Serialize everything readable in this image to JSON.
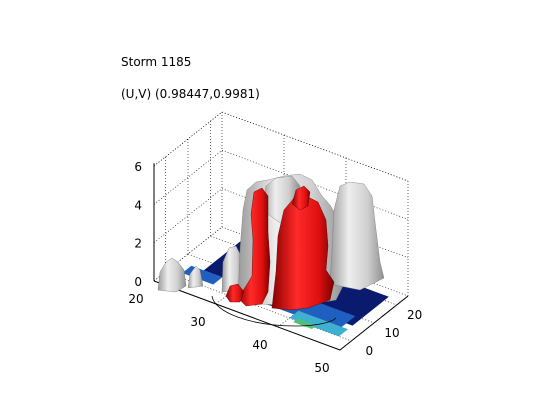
{
  "chart_data": {
    "type": "3d-isosurface",
    "title": "Storm 1185",
    "subtitle": "(U,V) (0.98447,0.9981)",
    "x_axis": {
      "ticks": [
        "20",
        "30",
        "40",
        "50"
      ],
      "range": [
        20,
        50
      ]
    },
    "y_axis": {
      "ticks": [
        "0",
        "10",
        "20"
      ],
      "range": [
        0,
        20
      ]
    },
    "z_axis": {
      "ticks": [
        "0",
        "2",
        "4",
        "6"
      ],
      "range": [
        0,
        6
      ]
    },
    "grid": true,
    "surfaces": [
      {
        "name_hint": "outer isosurface",
        "color": "#d8d8d8"
      },
      {
        "name_hint": "inner isosurface",
        "color": "#e01010"
      }
    ],
    "floor_colormap": [
      "#0a1a6e",
      "#1e5fbf",
      "#3fb0d0",
      "#4ec07a",
      "#e0e0e0"
    ]
  }
}
